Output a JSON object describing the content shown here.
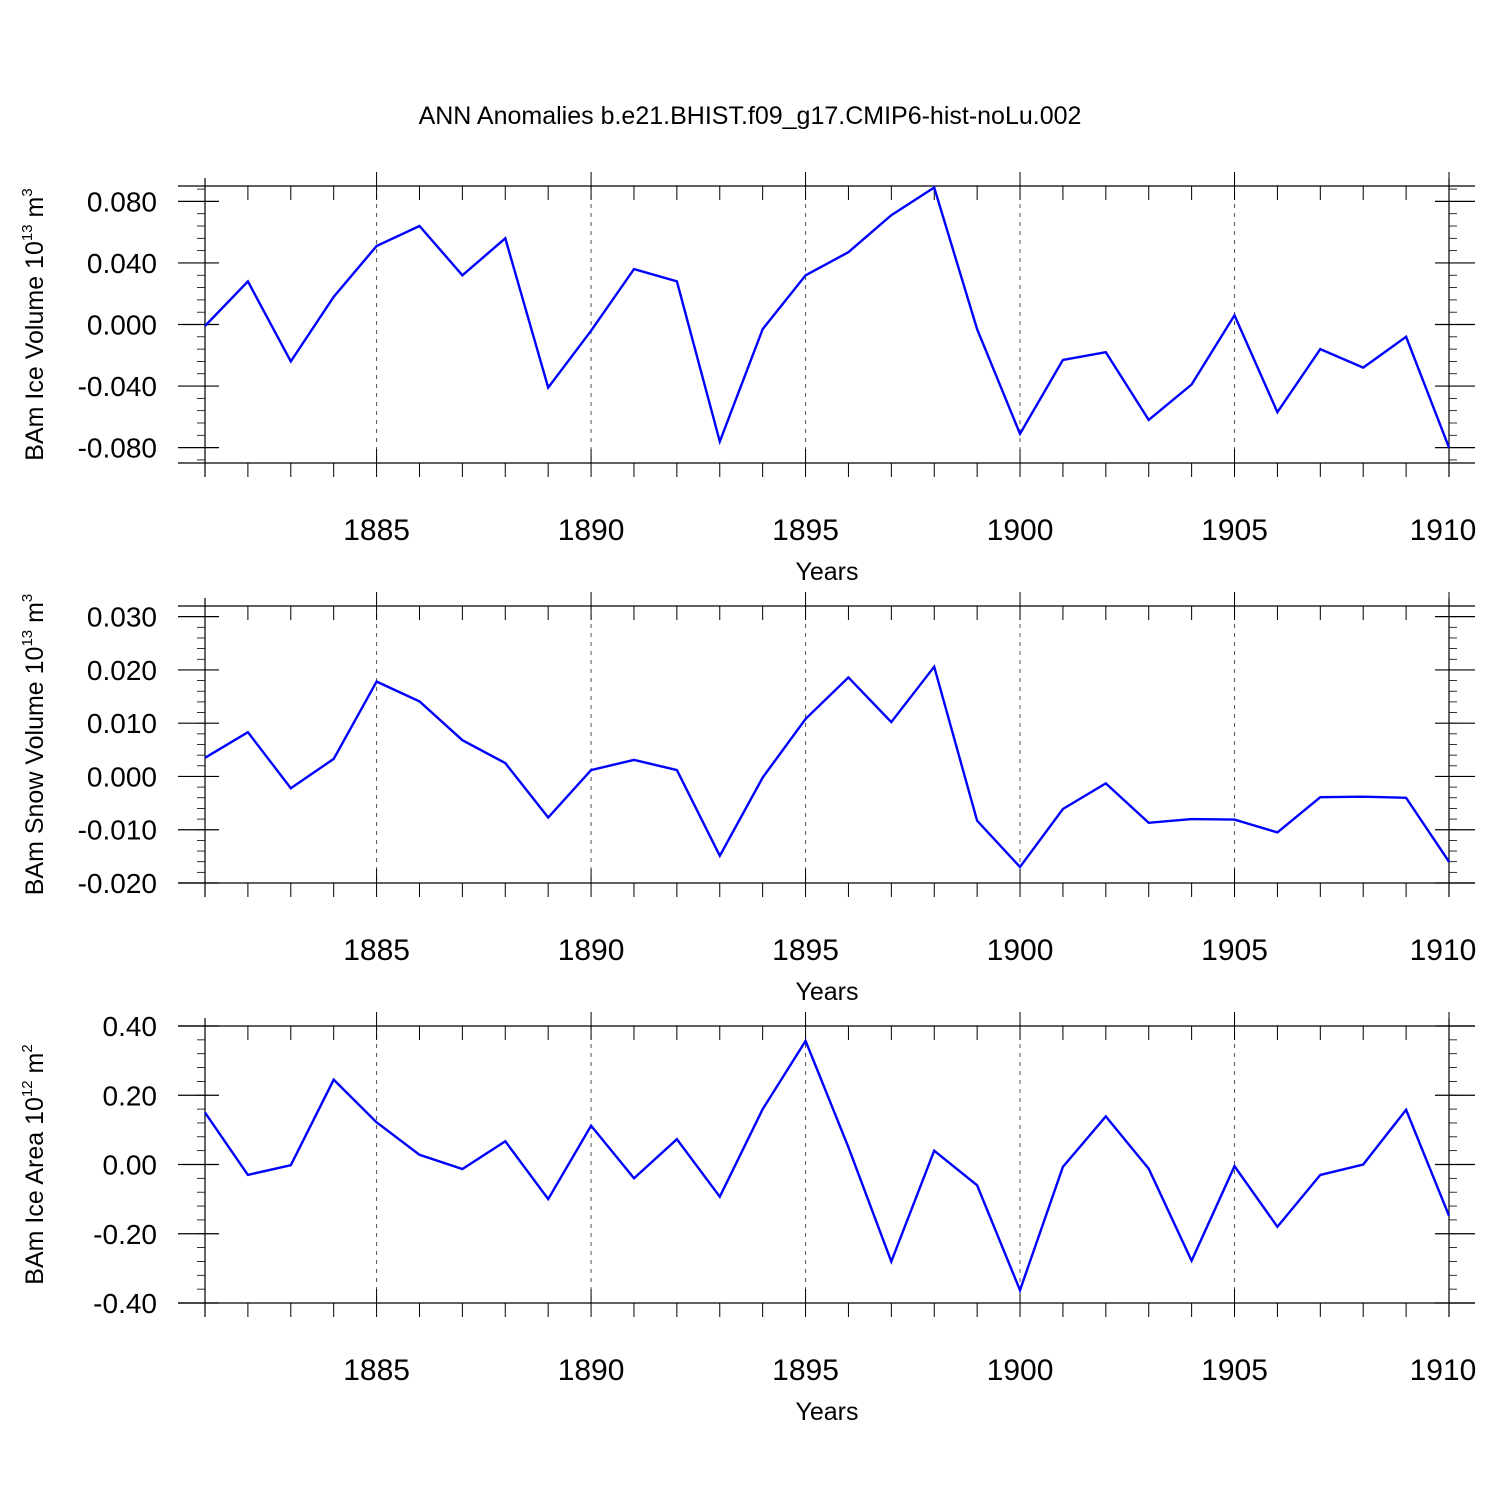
{
  "figure_title": "ANN Anomalies b.e21.BHIST.f09_g17.CMIP6-hist-noLu.002",
  "line_color": "#0000ff",
  "chart_data": [
    {
      "type": "line",
      "title": "",
      "xlabel": "Years",
      "ylabel": {
        "main": "BAm Ice Volume 10",
        "exp": "13",
        "unit": " m",
        "unit_exp": "3"
      },
      "xlim": [
        1881,
        1910
      ],
      "ylim": [
        -0.09,
        0.09
      ],
      "xticks": [
        1885,
        1890,
        1895,
        1900,
        1905,
        1910
      ],
      "yticks": [
        -0.08,
        -0.04,
        0.0,
        0.04,
        0.08
      ],
      "ytick_labels": [
        "-0.080",
        "-0.040",
        "0.000",
        "0.040",
        "0.080"
      ],
      "x": [
        1881,
        1882,
        1883,
        1884,
        1885,
        1886,
        1887,
        1888,
        1889,
        1890,
        1891,
        1892,
        1893,
        1894,
        1895,
        1896,
        1897,
        1898,
        1899,
        1900,
        1901,
        1902,
        1903,
        1904,
        1905,
        1906,
        1907,
        1908,
        1909,
        1910
      ],
      "series": [
        {
          "values": [
            -0.001,
            0.028,
            -0.024,
            0.018,
            0.051,
            0.064,
            0.032,
            0.056,
            -0.041,
            -0.004,
            0.036,
            0.028,
            -0.076,
            -0.003,
            0.032,
            0.047,
            0.071,
            0.089,
            -0.003,
            -0.071,
            -0.023,
            -0.018,
            -0.062,
            -0.039,
            0.006,
            -0.057,
            -0.016,
            -0.028,
            -0.008,
            -0.08
          ]
        }
      ]
    },
    {
      "type": "line",
      "title": "",
      "xlabel": "Years",
      "ylabel": {
        "main": "BAm Snow Volume 10",
        "exp": "13",
        "unit": " m",
        "unit_exp": "3"
      },
      "xlim": [
        1881,
        1910
      ],
      "ylim": [
        -0.02,
        0.032
      ],
      "xticks": [
        1885,
        1890,
        1895,
        1900,
        1905,
        1910
      ],
      "yticks": [
        -0.02,
        -0.01,
        0.0,
        0.01,
        0.02,
        0.03
      ],
      "ytick_labels": [
        "-0.020",
        "-0.010",
        "0.000",
        "0.010",
        "0.020",
        "0.030"
      ],
      "x": [
        1881,
        1882,
        1883,
        1884,
        1885,
        1886,
        1887,
        1888,
        1889,
        1890,
        1891,
        1892,
        1893,
        1894,
        1895,
        1896,
        1897,
        1898,
        1899,
        1900,
        1901,
        1902,
        1903,
        1904,
        1905,
        1906,
        1907,
        1908,
        1909,
        1910
      ],
      "series": [
        {
          "values": [
            0.0035,
            0.0083,
            -0.0022,
            0.0033,
            0.0178,
            0.0141,
            0.0068,
            0.0025,
            -0.0077,
            0.0012,
            0.0031,
            0.0012,
            -0.0149,
            -0.0002,
            0.0108,
            0.0186,
            0.0102,
            0.0206,
            -0.0083,
            -0.017,
            -0.0061,
            -0.0013,
            -0.0087,
            -0.008,
            -0.0081,
            -0.0105,
            -0.0039,
            -0.0038,
            -0.004,
            -0.016
          ]
        }
      ]
    },
    {
      "type": "line",
      "title": "",
      "xlabel": "Years",
      "ylabel": {
        "main": "BAm Ice Area 10",
        "exp": "12",
        "unit": " m",
        "unit_exp": "2"
      },
      "xlim": [
        1881,
        1910
      ],
      "ylim": [
        -0.4,
        0.4
      ],
      "xticks": [
        1885,
        1890,
        1895,
        1900,
        1905,
        1910
      ],
      "yticks": [
        -0.4,
        -0.2,
        0.0,
        0.2,
        0.4
      ],
      "ytick_labels": [
        "-0.40",
        "-0.20",
        "0.00",
        "0.20",
        "0.40"
      ],
      "x": [
        1881,
        1882,
        1883,
        1884,
        1885,
        1886,
        1887,
        1888,
        1889,
        1890,
        1891,
        1892,
        1893,
        1894,
        1895,
        1896,
        1897,
        1898,
        1899,
        1900,
        1901,
        1902,
        1903,
        1904,
        1905,
        1906,
        1907,
        1908,
        1909,
        1910
      ],
      "series": [
        {
          "values": [
            0.15,
            -0.03,
            -0.002,
            0.245,
            0.122,
            0.028,
            -0.013,
            0.067,
            -0.1,
            0.112,
            -0.04,
            0.073,
            -0.093,
            0.16,
            0.357,
            0.05,
            -0.28,
            0.04,
            -0.06,
            -0.363,
            -0.007,
            0.139,
            -0.012,
            -0.278,
            -0.005,
            -0.18,
            -0.03,
            0.0,
            0.158,
            -0.148
          ]
        }
      ]
    }
  ]
}
